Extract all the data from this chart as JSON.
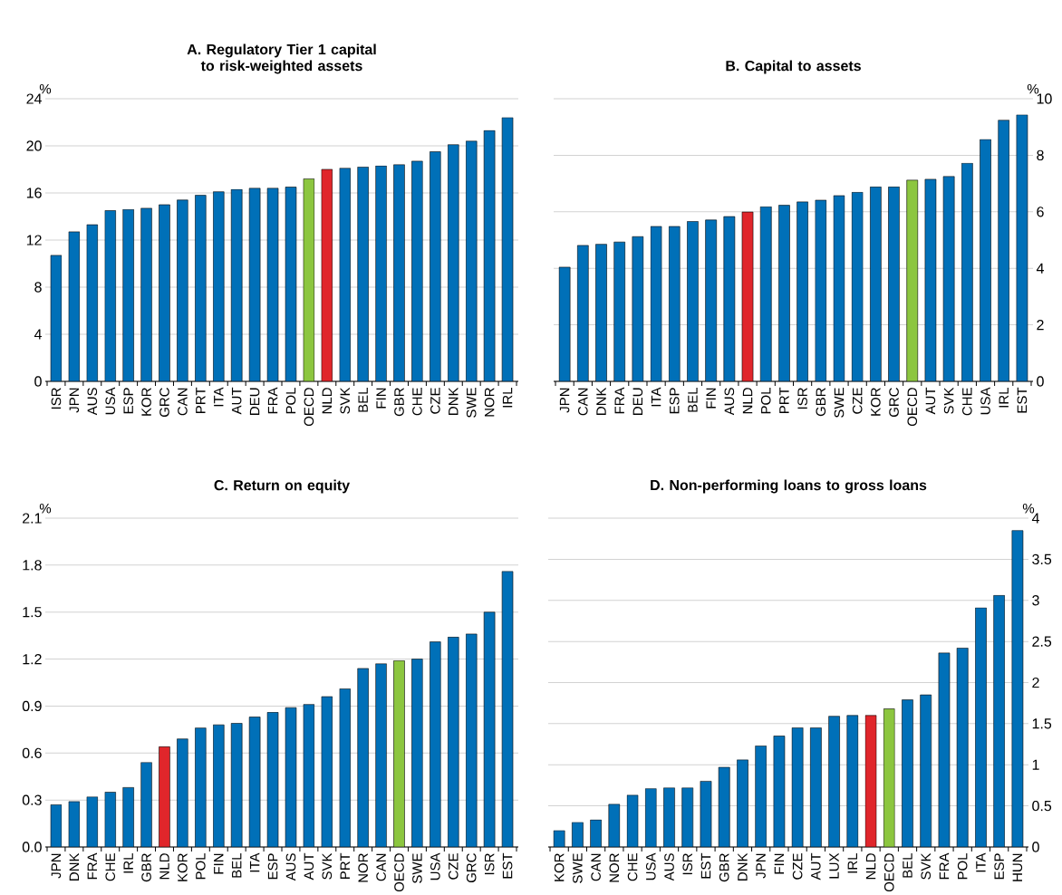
{
  "chart_data": [
    {
      "type": "bar",
      "title": "A. Regulatory Tier 1 capital to risk-weighted assets",
      "ylabel": "%",
      "categories": [
        "ISR",
        "JPN",
        "AUS",
        "USA",
        "ESP",
        "KOR",
        "GRC",
        "CAN",
        "PRT",
        "ITA",
        "AUT",
        "DEU",
        "FRA",
        "POL",
        "OECD",
        "NLD",
        "SVK",
        "BEL",
        "FIN",
        "GBR",
        "CHE",
        "CZE",
        "DNK",
        "SWE",
        "NOR",
        "IRL"
      ],
      "values": [
        10.7,
        12.7,
        13.3,
        14.5,
        14.6,
        14.7,
        15.0,
        15.4,
        15.8,
        16.1,
        16.3,
        16.4,
        16.4,
        16.5,
        17.2,
        18.0,
        18.1,
        18.2,
        18.3,
        18.4,
        18.7,
        19.5,
        20.1,
        20.4,
        21.3,
        22.4
      ],
      "colors": [
        "#0070b8",
        "#0070b8",
        "#0070b8",
        "#0070b8",
        "#0070b8",
        "#0070b8",
        "#0070b8",
        "#0070b8",
        "#0070b8",
        "#0070b8",
        "#0070b8",
        "#0070b8",
        "#0070b8",
        "#0070b8",
        "#8cc63f",
        "#e0262b",
        "#0070b8",
        "#0070b8",
        "#0070b8",
        "#0070b8",
        "#0070b8",
        "#0070b8",
        "#0070b8",
        "#0070b8",
        "#0070b8",
        "#0070b8"
      ],
      "ylim": [
        0,
        24
      ],
      "yticks": [
        0,
        4,
        8,
        12,
        16,
        20,
        24
      ],
      "grid": "y"
    },
    {
      "type": "bar",
      "title": "B. Capital to assets",
      "ylabel": "%",
      "categories": [
        "JPN",
        "CAN",
        "DNK",
        "FRA",
        "DEU",
        "ITA",
        "ESP",
        "BEL",
        "FIN",
        "AUS",
        "NLD",
        "POL",
        "PRT",
        "ISR",
        "GBR",
        "SWE",
        "CZE",
        "KOR",
        "GRC",
        "OECD",
        "AUT",
        "SVK",
        "CHE",
        "USA",
        "IRL",
        "EST"
      ],
      "values": [
        4.04,
        4.81,
        4.85,
        4.93,
        5.12,
        5.48,
        5.48,
        5.66,
        5.71,
        5.83,
        5.99,
        6.18,
        6.23,
        6.35,
        6.41,
        6.57,
        6.69,
        6.88,
        6.88,
        7.12,
        7.15,
        7.25,
        7.72,
        8.56,
        9.24,
        9.43
      ],
      "colors": [
        "#0070b8",
        "#0070b8",
        "#0070b8",
        "#0070b8",
        "#0070b8",
        "#0070b8",
        "#0070b8",
        "#0070b8",
        "#0070b8",
        "#0070b8",
        "#e0262b",
        "#0070b8",
        "#0070b8",
        "#0070b8",
        "#0070b8",
        "#0070b8",
        "#0070b8",
        "#0070b8",
        "#0070b8",
        "#8cc63f",
        "#0070b8",
        "#0070b8",
        "#0070b8",
        "#0070b8",
        "#0070b8",
        "#0070b8"
      ],
      "ylim": [
        0,
        10
      ],
      "yticks": [
        0,
        2,
        4,
        6,
        8,
        10
      ],
      "grid": "y"
    },
    {
      "type": "bar",
      "title": "C. Return on equity",
      "ylabel": "%",
      "categories": [
        "JPN",
        "DNK",
        "FRA",
        "CHE",
        "IRL",
        "GBR",
        "NLD",
        "KOR",
        "POL",
        "FIN",
        "BEL",
        "ITA",
        "ESP",
        "AUS",
        "AUT",
        "SVK",
        "PRT",
        "NOR",
        "CAN",
        "OECD",
        "SWE",
        "USA",
        "CZE",
        "GRC",
        "ISR",
        "EST"
      ],
      "values": [
        0.27,
        0.29,
        0.32,
        0.35,
        0.38,
        0.54,
        0.64,
        0.69,
        0.76,
        0.78,
        0.79,
        0.83,
        0.86,
        0.89,
        0.91,
        0.96,
        1.01,
        1.14,
        1.17,
        1.19,
        1.2,
        1.31,
        1.34,
        1.36,
        1.5,
        1.76
      ],
      "colors": [
        "#0070b8",
        "#0070b8",
        "#0070b8",
        "#0070b8",
        "#0070b8",
        "#0070b8",
        "#e0262b",
        "#0070b8",
        "#0070b8",
        "#0070b8",
        "#0070b8",
        "#0070b8",
        "#0070b8",
        "#0070b8",
        "#0070b8",
        "#0070b8",
        "#0070b8",
        "#0070b8",
        "#0070b8",
        "#8cc63f",
        "#0070b8",
        "#0070b8",
        "#0070b8",
        "#0070b8",
        "#0070b8",
        "#0070b8"
      ],
      "ylim": [
        0,
        2.1
      ],
      "yticks": [
        {
          "value": 0,
          "label": "0.0"
        },
        0.3,
        0.6,
        0.9,
        1.2,
        1.5,
        1.8,
        2.1
      ],
      "grid": "y"
    },
    {
      "type": "bar",
      "title": "D. Non-performing loans to gross loans",
      "ylabel": "%",
      "categories": [
        "KOR",
        "SWE",
        "CAN",
        "NOR",
        "CHE",
        "USA",
        "AUS",
        "ISR",
        "EST",
        "GBR",
        "DNK",
        "JPN",
        "FIN",
        "CZE",
        "AUT",
        "LUX",
        "IRL",
        "NLD",
        "OECD",
        "BEL",
        "SVK",
        "FRA",
        "POL",
        "ITA",
        "ESP",
        "HUN"
      ],
      "values": [
        0.2,
        0.3,
        0.33,
        0.52,
        0.63,
        0.71,
        0.72,
        0.72,
        0.8,
        0.97,
        1.06,
        1.23,
        1.35,
        1.45,
        1.45,
        1.59,
        1.6,
        1.6,
        1.68,
        1.79,
        1.85,
        2.36,
        2.42,
        2.91,
        3.06,
        3.85
      ],
      "colors": [
        "#0070b8",
        "#0070b8",
        "#0070b8",
        "#0070b8",
        "#0070b8",
        "#0070b8",
        "#0070b8",
        "#0070b8",
        "#0070b8",
        "#0070b8",
        "#0070b8",
        "#0070b8",
        "#0070b8",
        "#0070b8",
        "#0070b8",
        "#0070b8",
        "#0070b8",
        "#e0262b",
        "#8cc63f",
        "#0070b8",
        "#0070b8",
        "#0070b8",
        "#0070b8",
        "#0070b8",
        "#0070b8",
        "#0070b8"
      ],
      "ylim": [
        0,
        4
      ],
      "yticks": [
        0,
        0.5,
        1,
        1.5,
        2,
        2.5,
        3,
        3.5,
        4
      ],
      "grid": "y"
    }
  ]
}
